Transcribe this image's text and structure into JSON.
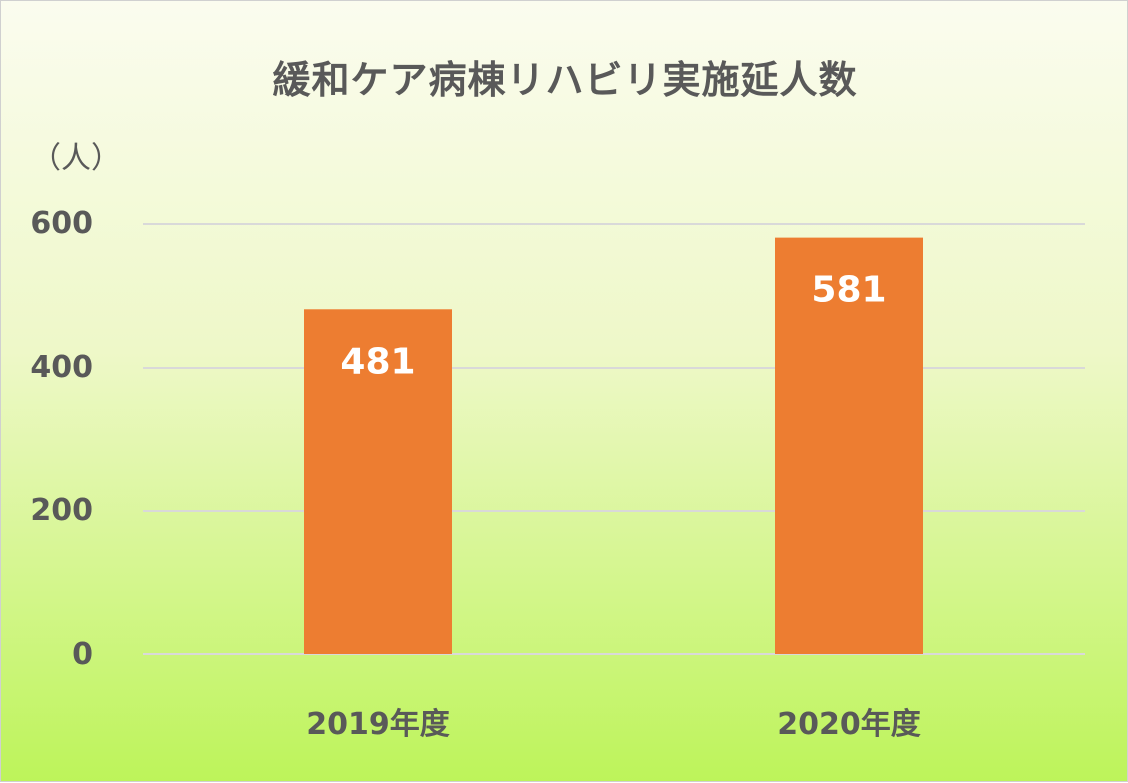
{
  "chart_data": {
    "type": "bar",
    "title": "緩和ケア病棟リハビリ実施延人数",
    "ylabel": "（人）",
    "categories": [
      "2019年度",
      "2020年度"
    ],
    "values": [
      481,
      581
    ],
    "data_labels": [
      "481",
      "581"
    ],
    "yticks": [
      "0",
      "200",
      "400",
      "600"
    ],
    "ylim": [
      0,
      600
    ],
    "grid": true,
    "bar_color": "#ed7d31"
  }
}
